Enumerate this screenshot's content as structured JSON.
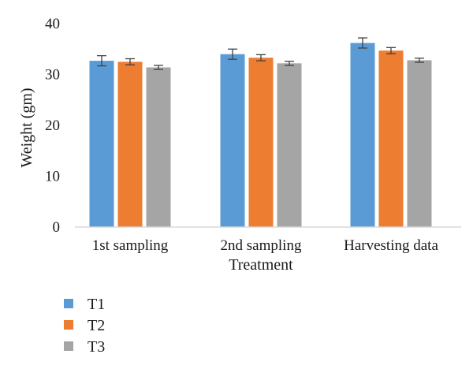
{
  "chart_data": {
    "type": "bar",
    "title": "",
    "xlabel": "Treatment",
    "ylabel": "Weight (gm)",
    "ylim": [
      0,
      40
    ],
    "yticks": [
      "0",
      "10",
      "20",
      "30",
      "40"
    ],
    "grid": false,
    "legend_position": "bottom-left",
    "categories": [
      "1st sampling",
      "2nd sampling",
      "Harvesting data"
    ],
    "series": [
      {
        "name": "T1",
        "color": "#5B9BD5",
        "values": [
          32.7,
          34.0,
          36.2
        ],
        "errors": [
          1.0,
          1.0,
          1.0
        ]
      },
      {
        "name": "T2",
        "color": "#ED7D31",
        "values": [
          32.5,
          33.3,
          34.7
        ],
        "errors": [
          0.6,
          0.6,
          0.6
        ]
      },
      {
        "name": "T3",
        "color": "#A5A5A5",
        "values": [
          31.4,
          32.2,
          32.8
        ],
        "errors": [
          0.4,
          0.4,
          0.4
        ]
      }
    ]
  }
}
